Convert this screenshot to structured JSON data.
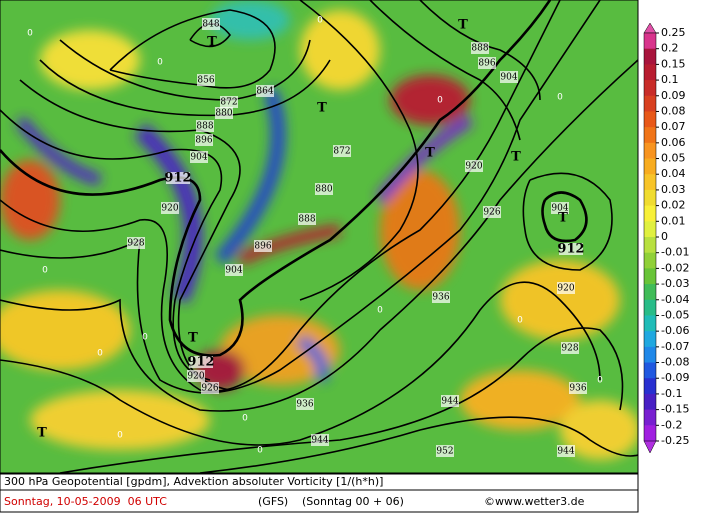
{
  "map": {
    "map_labels": [
      "848",
      "856",
      "864",
      "872",
      "880",
      "888",
      "896",
      "904",
      "912",
      "920",
      "928",
      "912",
      "920",
      "926",
      "896",
      "904",
      "888",
      "880",
      "872",
      "888",
      "896",
      "904",
      "920",
      "926",
      "904",
      "912",
      "920",
      "928",
      "936",
      "936",
      "936",
      "944",
      "944",
      "952",
      "944",
      "T",
      "T",
      "T",
      "T",
      "T",
      "T",
      "T",
      "T"
    ],
    "zero_labels": [
      "0",
      "0",
      "0",
      "0",
      "0",
      "0",
      "0",
      "0",
      "0",
      "0",
      "0",
      "0",
      "0",
      "0"
    ],
    "colorbar": {
      "labels": [
        0.25,
        0.2,
        0.15,
        0.1,
        0.09,
        0.08,
        0.07,
        0.06,
        0.05,
        0.04,
        0.03,
        0.02,
        0.01,
        0,
        -0.01,
        -0.02,
        -0.03,
        -0.04,
        -0.05,
        -0.06,
        -0.07,
        -0.08,
        -0.09,
        -0.1,
        -0.15,
        -0.2,
        -0.25
      ],
      "colors": [
        "#d8348c",
        "#a8143c",
        "#b81c30",
        "#c82c28",
        "#d84020",
        "#e85818",
        "#f07418",
        "#f89420",
        "#f8ac20",
        "#f8c428",
        "#f0dc30",
        "#f8f038",
        "#e0f040",
        "#b8e040",
        "#90d038",
        "#68c438",
        "#40bc58",
        "#28bc88",
        "#20bcb8",
        "#20a8e0",
        "#2088e8",
        "#2058e0",
        "#2830d0",
        "#4820c4",
        "#7820d0",
        "#a020e0"
      ],
      "top_color": "#e050a8",
      "bottom_color": "#b030e0"
    },
    "footer": {
      "line1": "300 hPa Geopotential [gpdm], Advektion absoluter Vorticity [1/(h*h)]",
      "date": "Sonntag, 10-05-2009  06 UTC",
      "model": "(GFS)",
      "run": "(Sonntag 00 + 06)",
      "credit": "©www.wetter3.de"
    }
  }
}
